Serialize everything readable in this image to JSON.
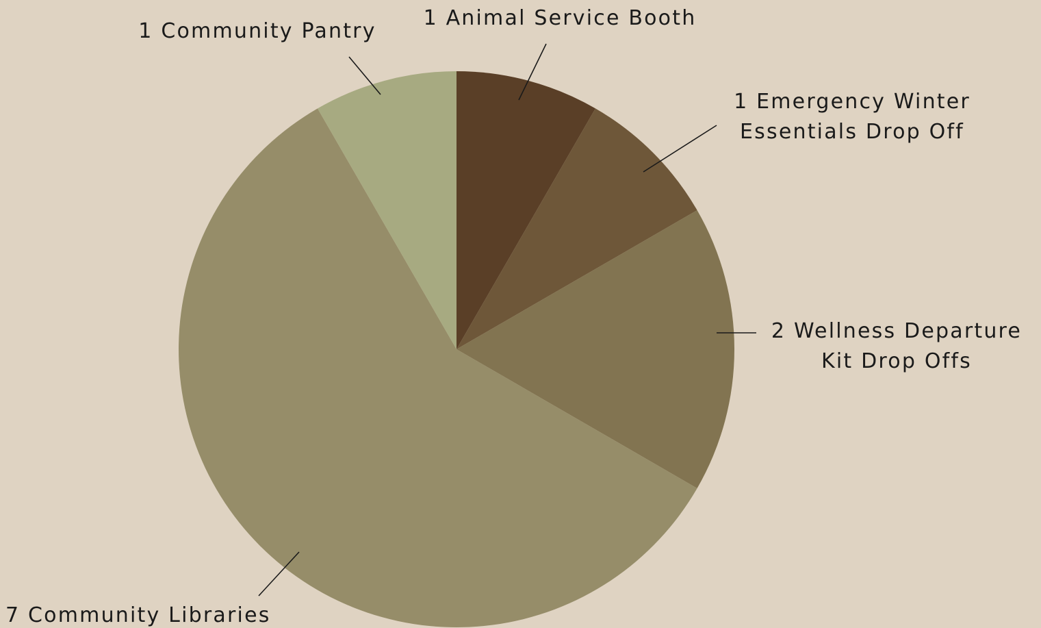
{
  "colors": {
    "background": "#dfd3c2",
    "label_text": "#1a1a1a",
    "leader_line": "#1a1a1a"
  },
  "chart_data": {
    "type": "pie",
    "title": "",
    "start": "12 o'clock",
    "direction": "clockwise",
    "legend": "none",
    "slices": [
      {
        "key": "animal",
        "value": 1,
        "label_lines": [
          "1 Animal Service Booth"
        ],
        "color": "#5a3f27"
      },
      {
        "key": "winter",
        "value": 1,
        "label_lines": [
          "1 Emergency Winter",
          "Essentials Drop Off"
        ],
        "color": "#6e5739"
      },
      {
        "key": "wellness",
        "value": 2,
        "label_lines": [
          "2 Wellness Departure",
          "Kit Drop Offs"
        ],
        "color": "#827451"
      },
      {
        "key": "libraries",
        "value": 7,
        "label_lines": [
          "7 Community Libraries"
        ],
        "color": "#968d69"
      },
      {
        "key": "pantry",
        "value": 1,
        "label_lines": [
          "1 Community Pantry"
        ],
        "color": "#a7aa81"
      }
    ]
  }
}
